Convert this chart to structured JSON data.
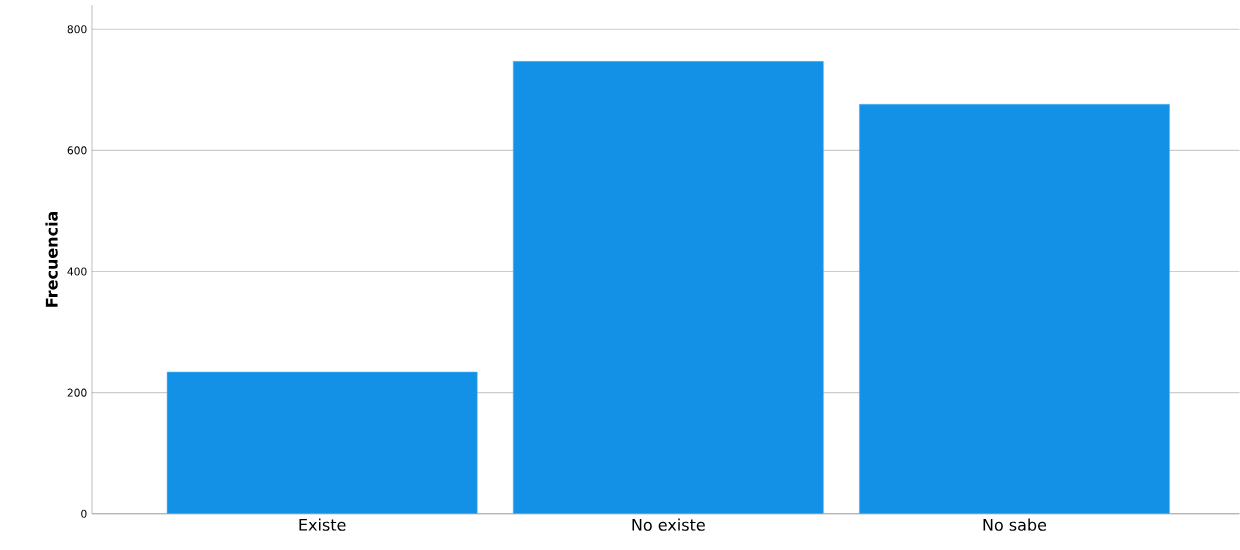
{
  "chart_data": {
    "type": "bar",
    "ylabel": "Frecuencia",
    "categories": [
      "Existe",
      "No existe",
      "No sabe"
    ],
    "values": [
      234,
      747,
      676
    ],
    "color": "#1391e6",
    "ylim": [
      0,
      840
    ],
    "yticks": [
      0,
      200,
      400,
      600,
      800
    ],
    "grid": "y"
  }
}
